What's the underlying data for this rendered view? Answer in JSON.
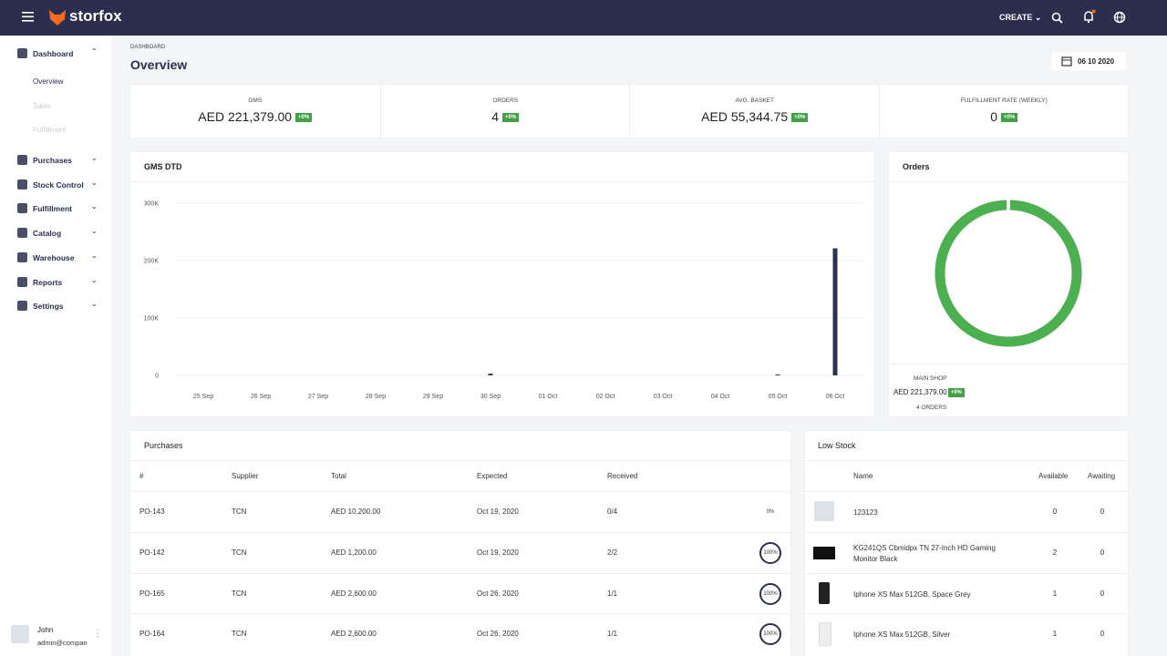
{
  "header": {
    "brand": "storfox",
    "create": "CREATE"
  },
  "sidebar": {
    "items": [
      {
        "label": "Dashboard",
        "children": [
          "Overview",
          "Sales",
          "Fulfillment"
        ]
      },
      {
        "label": "Purchases"
      },
      {
        "label": "Stock Control"
      },
      {
        "label": "Fulfillment"
      },
      {
        "label": "Catalog"
      },
      {
        "label": "Warehouse"
      },
      {
        "label": "Reports"
      },
      {
        "label": "Settings"
      }
    ],
    "user": {
      "name": "John",
      "email": "admin@compan"
    }
  },
  "page": {
    "breadcrumb": "DASHBOARD",
    "title": "Overview",
    "date": "06 10 2020"
  },
  "kpis": [
    {
      "label": "GMS",
      "value": "AED 221,379.00",
      "change": "+0%"
    },
    {
      "label": "ORDERS",
      "value": "4",
      "change": "+0%"
    },
    {
      "label": "AVG. BASKET",
      "value": "AED 55,344.75",
      "change": "+0%"
    },
    {
      "label": "FULFILLMENT RATE (WEEKLY)",
      "value": "0",
      "change": "+0%"
    }
  ],
  "chart_data": [
    {
      "type": "bar",
      "title": "GMS DTD",
      "categories": [
        "25 Sep",
        "26 Sep",
        "27 Sep",
        "28 Sep",
        "29 Sep",
        "30 Sep",
        "01 Oct",
        "02 Oct",
        "03 Oct",
        "04 Oct",
        "05 Oct",
        "06 Oct"
      ],
      "values": [
        0,
        0,
        0,
        0,
        0,
        3000,
        0,
        0,
        0,
        0,
        1500,
        221379
      ],
      "color": "#2b3152",
      "ylim": [
        0,
        300000
      ],
      "yticks": [
        0,
        {
          "value": 100000,
          "label": "100K"
        },
        {
          "value": 200000,
          "label": "200K"
        },
        {
          "value": 300000,
          "label": "300K"
        }
      ],
      "grid": true
    },
    {
      "type": "pie",
      "title": "Orders",
      "categories": [
        "MAIN SHOP"
      ],
      "values": [
        4
      ],
      "value_labels": [
        "4 ORDERS"
      ],
      "color": "#4caf50",
      "amounts": [
        "AED 221,379.00"
      ],
      "changes": [
        "+0%"
      ]
    }
  ],
  "purchases": {
    "title": "Purchases",
    "headers": [
      "#",
      "Supplier",
      "Total",
      "Expected",
      "Received"
    ],
    "rows": [
      {
        "id": "PO-143",
        "supplier": "TCN",
        "total": "AED 10,200.00",
        "expected": "Oct 19, 2020",
        "received": "0/4",
        "progress": "0%"
      },
      {
        "id": "PO-142",
        "supplier": "TCN",
        "total": "AED 1,200.00",
        "expected": "Oct 19, 2020",
        "received": "2/2",
        "progress": "100%"
      },
      {
        "id": "PO-165",
        "supplier": "TCN",
        "total": "AED 2,600.00",
        "expected": "Oct 26, 2020",
        "received": "1/1",
        "progress": "100%"
      },
      {
        "id": "PO-164",
        "supplier": "TCN",
        "total": "AED 2,600.00",
        "expected": "Oct 26, 2020",
        "received": "1/1",
        "progress": "100%"
      }
    ]
  },
  "low_stock": {
    "title": "Low Stock",
    "headers": [
      "Name",
      "Available",
      "Awaiting"
    ],
    "rows": [
      {
        "name": "123123",
        "available": "0",
        "awaiting": "0"
      },
      {
        "name": "KG241QS Cbmidpx TN 27-Inch HD Gaming Monitor Black",
        "available": "2",
        "awaiting": "0"
      },
      {
        "name": "Iphone XS Max 512GB, Space Grey",
        "available": "1",
        "awaiting": "0"
      },
      {
        "name": "Iphone XS Max 512GB, Silver",
        "available": "1",
        "awaiting": "0"
      }
    ]
  }
}
